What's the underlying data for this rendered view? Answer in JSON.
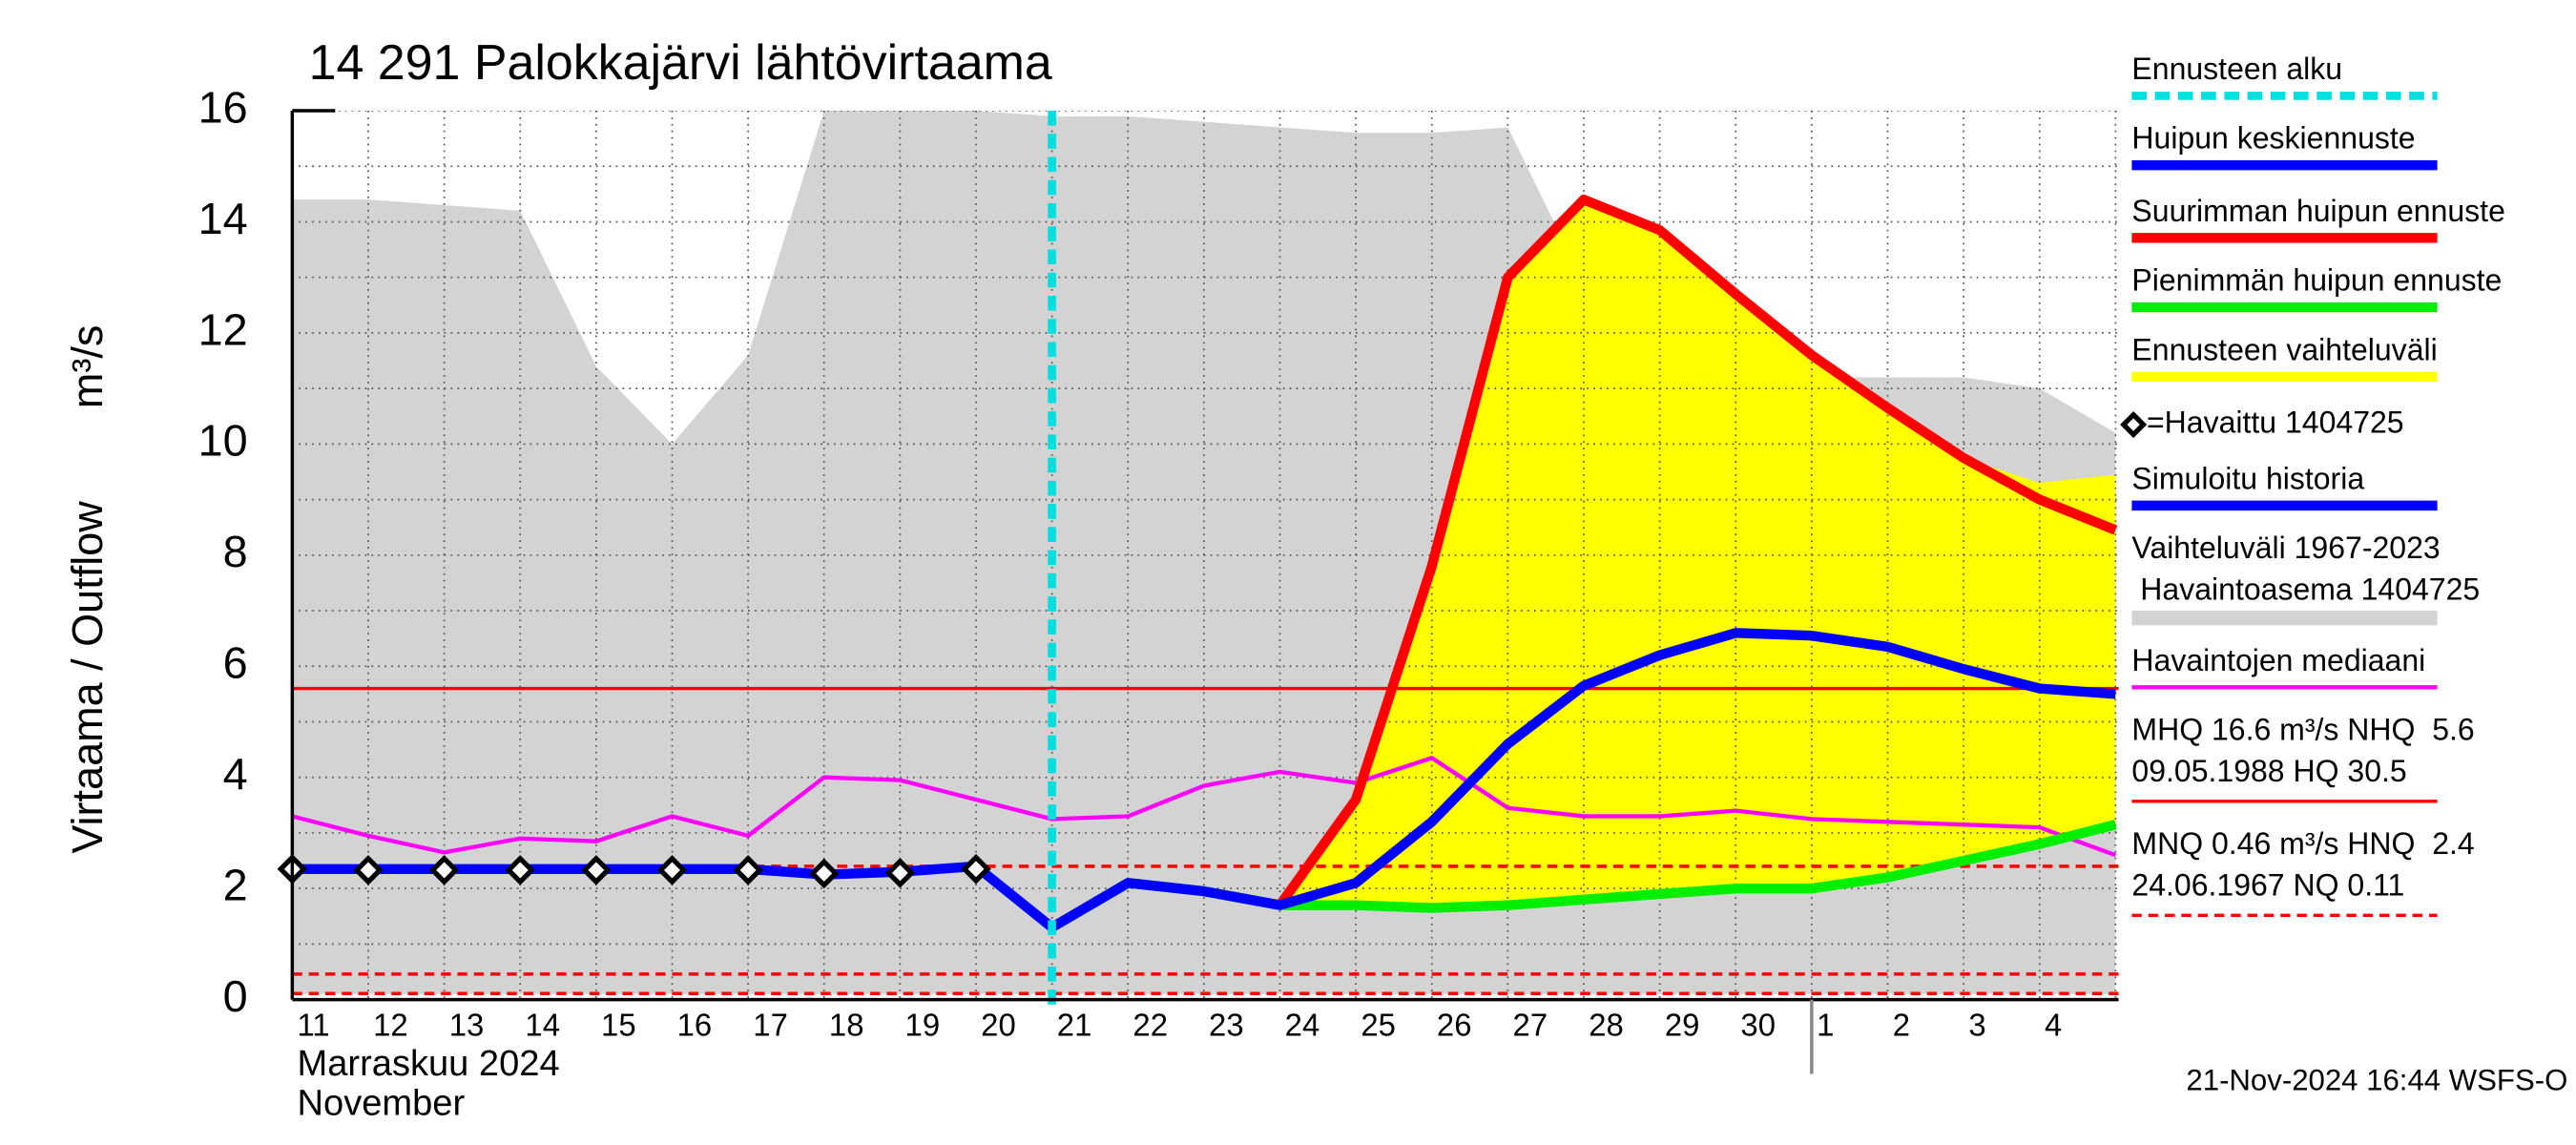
{
  "chart_data": {
    "type": "line",
    "title": "14 291 Palokkajärvi lähtövirtaama",
    "y_label": "Virtaama / Outflow",
    "y_unit": "m³/s",
    "x_label_lines": [
      "Marraskuu 2024",
      "November"
    ],
    "footer": "21-Nov-2024 16:44 WSFS-O",
    "categories": [
      "11",
      "12",
      "13",
      "14",
      "15",
      "16",
      "17",
      "18",
      "19",
      "20",
      "21",
      "22",
      "23",
      "24",
      "25",
      "26",
      "27",
      "28",
      "29",
      "30",
      "1",
      "2",
      "3",
      "4",
      null
    ],
    "month_break": "1",
    "ylim": [
      0,
      16
    ],
    "yticks": [
      0,
      2,
      4,
      6,
      8,
      10,
      12,
      14,
      16
    ],
    "yminorticks": [
      1,
      3,
      5,
      7,
      9,
      11,
      13,
      15
    ],
    "grid": true,
    "forecast_start": {
      "name": "Ennusteen alku",
      "at": "21",
      "color": "#00e0e0"
    },
    "series": [
      {
        "name": "Huipun keskiennuste",
        "kind": "line",
        "color": "#0000ff",
        "values": [
          null,
          null,
          null,
          null,
          null,
          null,
          null,
          null,
          null,
          null,
          1.3,
          2.1,
          1.95,
          1.7,
          2.1,
          3.2,
          4.6,
          5.65,
          6.2,
          6.6,
          6.55,
          6.35,
          5.95,
          5.6,
          5.5
        ]
      },
      {
        "name": "Suurimman huipun ennuste",
        "kind": "line",
        "color": "#ff0000",
        "values": [
          null,
          null,
          null,
          null,
          null,
          null,
          null,
          null,
          null,
          null,
          null,
          null,
          null,
          1.7,
          3.6,
          7.8,
          13.0,
          14.4,
          13.85,
          12.7,
          11.6,
          10.65,
          9.75,
          9.0,
          8.45
        ]
      },
      {
        "name": "Pienimmän huipun ennuste",
        "kind": "line",
        "color": "#00ee00",
        "values": [
          null,
          null,
          null,
          null,
          null,
          null,
          null,
          null,
          null,
          null,
          1.3,
          2.1,
          1.95,
          1.7,
          1.7,
          1.65,
          1.7,
          1.8,
          1.9,
          2.0,
          2.0,
          2.2,
          2.5,
          2.8,
          3.15
        ]
      },
      {
        "name": "Ennusteen vaihteluväli",
        "kind": "band",
        "color": "#ffff00",
        "upper": [
          null,
          null,
          null,
          null,
          null,
          null,
          null,
          null,
          null,
          null,
          null,
          null,
          null,
          1.7,
          3.6,
          7.8,
          13.0,
          14.4,
          13.85,
          12.7,
          11.6,
          10.65,
          9.75,
          9.3,
          9.45
        ],
        "lower": [
          null,
          null,
          null,
          null,
          null,
          null,
          null,
          null,
          null,
          null,
          null,
          null,
          null,
          1.7,
          1.7,
          1.65,
          1.7,
          1.8,
          1.9,
          2.0,
          2.0,
          2.2,
          2.5,
          2.8,
          3.15
        ]
      },
      {
        "name": "=Havaittu 1404725",
        "kind": "markers",
        "color": "#000000",
        "values": [
          2.35,
          2.33,
          2.33,
          2.33,
          2.33,
          2.33,
          2.33,
          2.27,
          2.28,
          2.35,
          null,
          null,
          null,
          null,
          null,
          null,
          null,
          null,
          null,
          null,
          null,
          null,
          null,
          null,
          null
        ]
      },
      {
        "name": "Simuloitu historia",
        "kind": "line",
        "color": "#0000ff",
        "values": [
          2.35,
          2.35,
          2.35,
          2.35,
          2.35,
          2.35,
          2.35,
          2.25,
          2.3,
          2.4,
          1.3,
          null,
          null,
          null,
          null,
          null,
          null,
          null,
          null,
          null,
          null,
          null,
          null,
          null,
          null
        ]
      },
      {
        "name": "Vaihteluväli 1967-2023",
        "name_line2": " Havaintoasema 1404725",
        "kind": "band",
        "color": "#d3d3d3",
        "upper": [
          14.4,
          14.4,
          14.3,
          14.2,
          11.4,
          10.0,
          11.6,
          16,
          16,
          16,
          15.9,
          15.9,
          15.8,
          15.7,
          15.6,
          15.6,
          15.7,
          12.9,
          12.8,
          11.2,
          11.2,
          11.2,
          11.2,
          11.0,
          10.2
        ],
        "lower": [
          0.1,
          0.1,
          0.1,
          0.1,
          0.1,
          0.1,
          0.1,
          0.1,
          0.1,
          0.1,
          0.1,
          0.1,
          0.1,
          0.1,
          0.1,
          0.1,
          0.1,
          0.1,
          0.1,
          0.1,
          0.1,
          0.1,
          0.1,
          0.1,
          0.1
        ]
      },
      {
        "name": "Havaintojen mediaani",
        "kind": "thin",
        "color": "#ff00ff",
        "values": [
          3.3,
          2.95,
          2.65,
          2.9,
          2.85,
          3.3,
          2.95,
          4.0,
          3.95,
          3.6,
          3.25,
          3.3,
          3.85,
          4.1,
          3.9,
          4.35,
          3.45,
          3.3,
          3.3,
          3.4,
          3.25,
          3.2,
          3.15,
          3.1,
          2.6
        ]
      }
    ],
    "hlines": [
      {
        "value": 5.6,
        "color": "#ff0000",
        "dashed": false,
        "label": [
          "MHQ 16.6 m³/s NHQ  5.6",
          "09.05.1988 HQ 30.5"
        ]
      },
      {
        "value": 2.4,
        "color": "#ff0000",
        "dashed": true,
        "label": [
          "MNQ 0.46 m³/s HNQ  2.4",
          "24.06.1967 NQ 0.11"
        ]
      },
      {
        "value": 0.46,
        "color": "#ff0000",
        "dashed": true
      },
      {
        "value": 0.11,
        "color": "#ff0000",
        "dashed": true
      }
    ]
  }
}
